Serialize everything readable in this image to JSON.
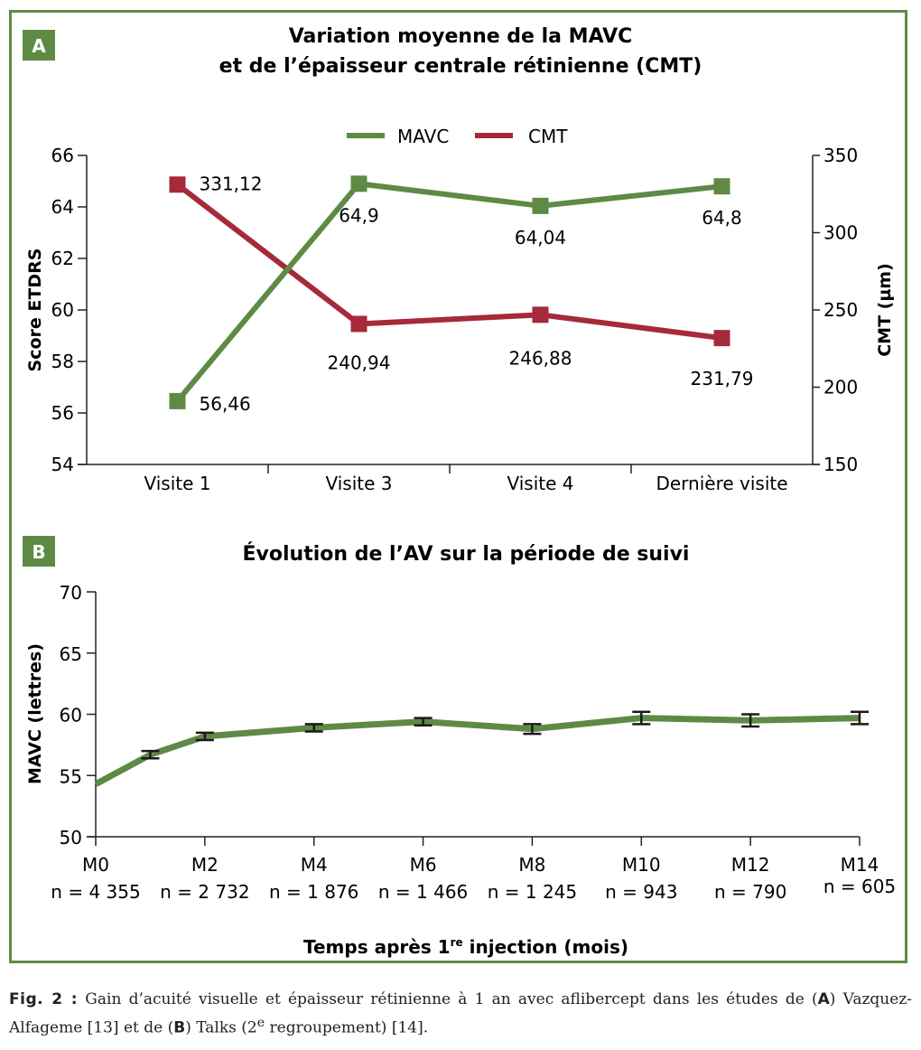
{
  "colors": {
    "mavc": "#5e8a45",
    "cmt": "#a52a3a",
    "frame": "#5e8a45",
    "axis": "#222222",
    "panel_badge": "#5e8a45"
  },
  "chart_data": [
    {
      "panel": "A",
      "type": "line",
      "title_line1": "Variation moyenne de la MAVC",
      "title_line2": "et de l’épaisseur centrale rétinienne (CMT)",
      "categories": [
        "Visite 1",
        "Visite 3",
        "Visite 4",
        "Dernière visite"
      ],
      "legend": [
        "MAVC",
        "CMT"
      ],
      "legend_position": "top-center",
      "ylabel": "Score ETDRS",
      "y2label": "CMT (µm)",
      "ylim": [
        54,
        66
      ],
      "yticks": [
        54,
        56,
        58,
        60,
        62,
        64,
        66
      ],
      "y2lim": [
        150,
        350
      ],
      "y2ticks": [
        150,
        200,
        250,
        300,
        350
      ],
      "grid": false,
      "series": [
        {
          "name": "MAVC",
          "axis": "left",
          "values": [
            56.46,
            64.9,
            64.04,
            64.8
          ],
          "labels": [
            "56,46",
            "64,9",
            "64,04",
            "64,8"
          ]
        },
        {
          "name": "CMT",
          "axis": "right",
          "values": [
            331.12,
            240.94,
            246.88,
            231.79
          ],
          "labels": [
            "331,12",
            "240,94",
            "246,88",
            "231,79"
          ]
        }
      ]
    },
    {
      "panel": "B",
      "type": "line",
      "title": "Évolution de l’AV sur la période de suivi",
      "xlabel_main": "Temps après 1",
      "xlabel_sup": "re",
      "xlabel_rest": " injection (mois)",
      "ylabel": "MAVC (lettres)",
      "ylim": [
        50,
        70
      ],
      "yticks": [
        50,
        55,
        60,
        65,
        70
      ],
      "xlim": [
        0,
        14
      ],
      "grid": false,
      "xticks": [
        {
          "month": 0,
          "label": "M0",
          "n": "n = 4 355"
        },
        {
          "month": 2,
          "label": "M2",
          "n": "n = 2 732"
        },
        {
          "month": 4,
          "label": "M4",
          "n": "n = 1 876"
        },
        {
          "month": 6,
          "label": "M6",
          "n": "n = 1 466"
        },
        {
          "month": 8,
          "label": "M8",
          "n": "n = 1 245"
        },
        {
          "month": 10,
          "label": "M10",
          "n": "n = 943"
        },
        {
          "month": 12,
          "label": "M12",
          "n": "n = 790"
        },
        {
          "month": 14,
          "label": "M14",
          "n": "n = 605"
        }
      ],
      "series": [
        {
          "name": "MAVC",
          "x": [
            0,
            1,
            2,
            4,
            6,
            8,
            10,
            12,
            14
          ],
          "values": [
            54.3,
            56.7,
            58.2,
            58.9,
            59.4,
            58.8,
            59.7,
            59.5,
            59.7
          ],
          "error": [
            null,
            0.3,
            0.3,
            0.3,
            0.3,
            0.4,
            0.5,
            0.5,
            0.5
          ]
        }
      ]
    }
  ],
  "caption": {
    "fig_label": "Fig. 2 :",
    "text_line1": " Gain d’acuité visuelle et épaisseur rétinienne à 1 an avec aflibercept dans les études de",
    "open_a": "(",
    "a": "A",
    "text_a": ") Vazquez-Alfageme [13] et de (",
    "b": "B",
    "text_b": ") Talks (2",
    "sup": "e",
    "text_end": " regroupement) [14]."
  }
}
